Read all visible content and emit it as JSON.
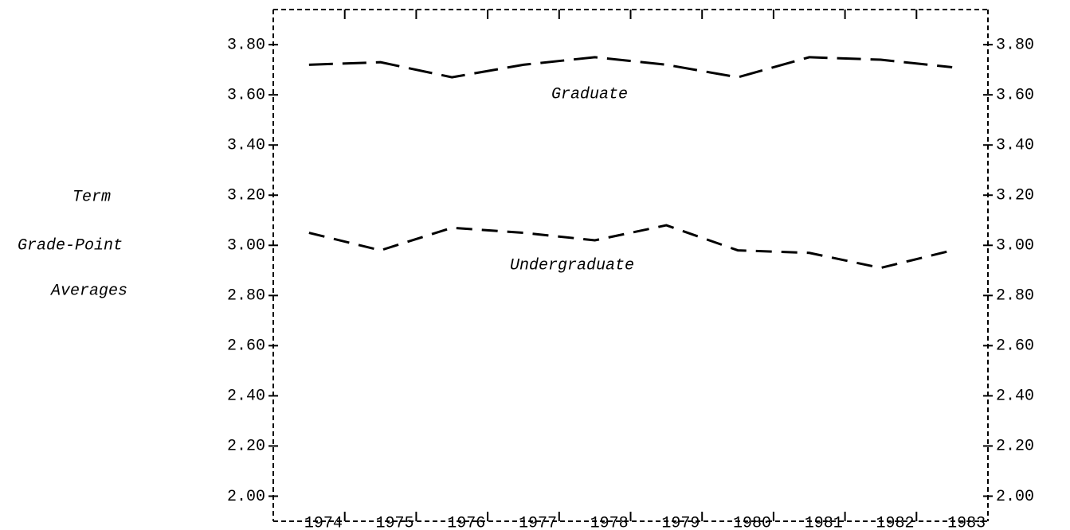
{
  "chart_data": {
    "type": "line",
    "ylabel": [
      "Term",
      "Grade-Point",
      "Averages"
    ],
    "categories": [
      "1974",
      "1975",
      "1976",
      "1977",
      "1978",
      "1979",
      "1980",
      "1981",
      "1982",
      "1983"
    ],
    "series": [
      {
        "name": "Graduate",
        "color": "#000000",
        "values": [
          3.72,
          3.73,
          3.67,
          3.72,
          3.75,
          3.72,
          3.67,
          3.75,
          3.74,
          3.71
        ]
      },
      {
        "name": "Undergraduate",
        "color": "#000000",
        "values": [
          3.05,
          2.98,
          3.07,
          3.05,
          3.02,
          3.08,
          2.98,
          2.97,
          2.91,
          2.98
        ]
      }
    ],
    "ylim": [
      1.9,
      3.94
    ],
    "yticks": [
      {
        "value": 2.0,
        "label": "2.00"
      },
      {
        "value": 2.2,
        "label": "2.20"
      },
      {
        "value": 2.4,
        "label": "2.40"
      },
      {
        "value": 2.6,
        "label": "2.60"
      },
      {
        "value": 2.8,
        "label": "2.80"
      },
      {
        "value": 3.0,
        "label": "3.00"
      },
      {
        "value": 3.2,
        "label": "3.20"
      },
      {
        "value": 3.4,
        "label": "3.40"
      },
      {
        "value": 3.6,
        "label": "3.60"
      },
      {
        "value": 3.8,
        "label": "3.80"
      }
    ],
    "right_axis": true,
    "grid": false
  }
}
